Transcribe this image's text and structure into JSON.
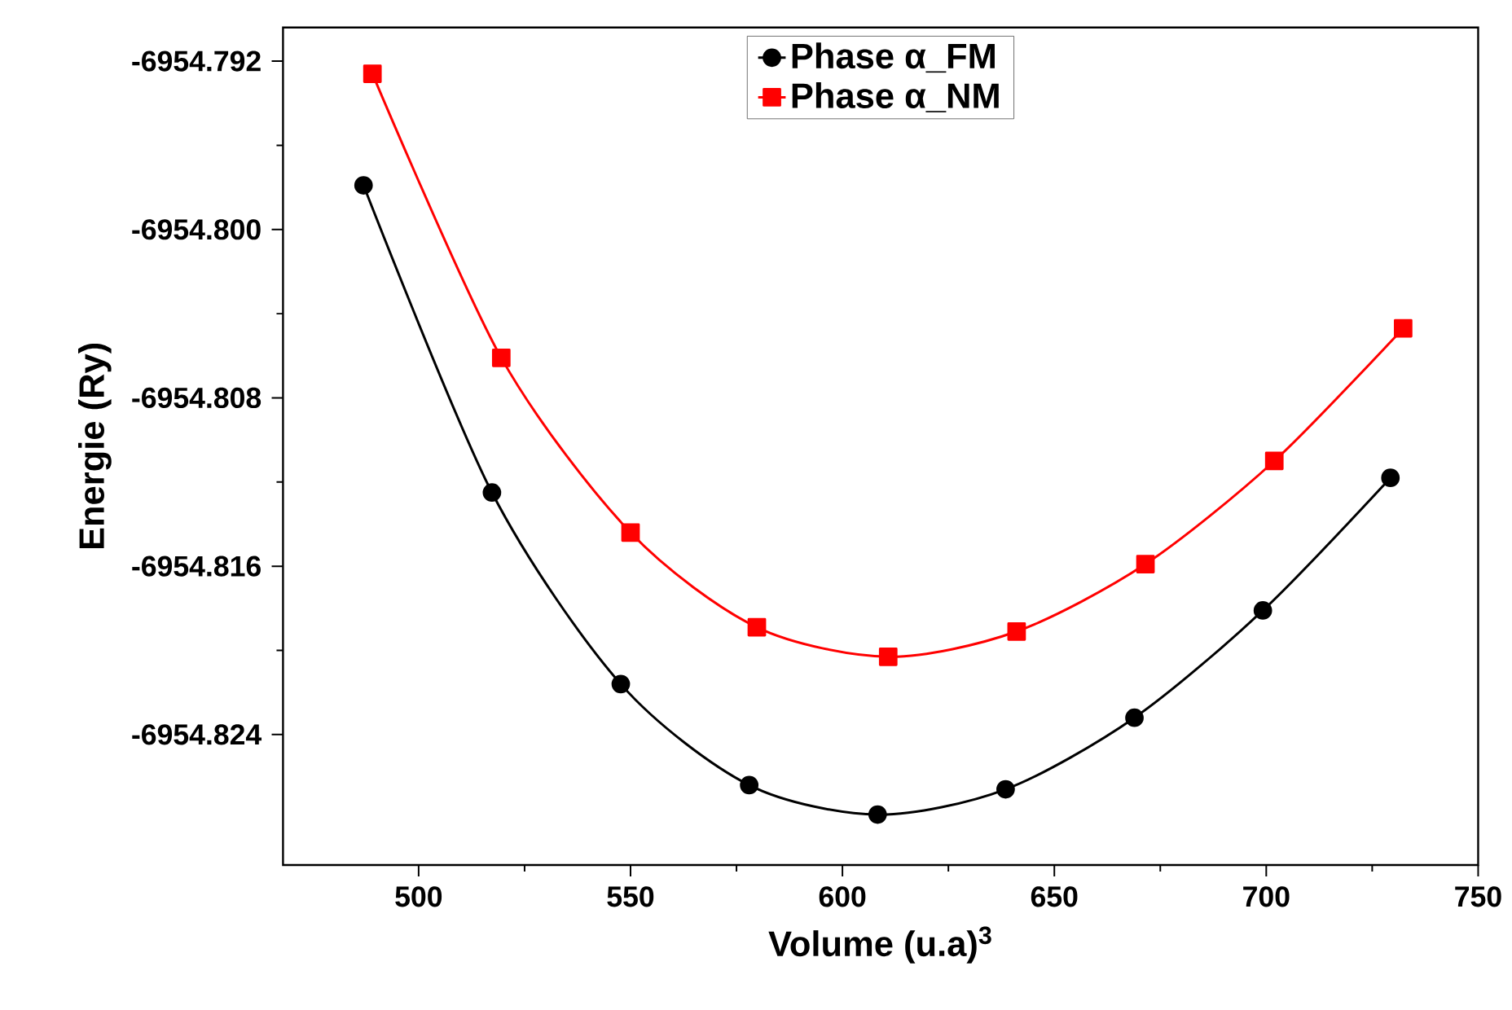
{
  "chart_data": {
    "type": "line",
    "xlabel": "Volume (u.a)$^{3}$",
    "ylabel": "Energie (Ry)",
    "xlim": [
      468,
      750
    ],
    "ylim": [
      -6954.8302,
      -6954.7904
    ],
    "xticks": [
      500,
      550,
      600,
      650,
      700,
      750
    ],
    "yticks": [
      -6954.792,
      {
        "value": -6954.8,
        "label": "-6954.800"
      },
      -6954.808,
      -6954.816,
      -6954.824
    ],
    "grid": false,
    "legend": "top",
    "line_style": "solid",
    "series": [
      {
        "name": "Phase α_FM",
        "color": "#000000",
        "marker": "circle",
        "x": [
          487.0,
          517.3,
          547.7,
          578.0,
          608.3,
          638.5,
          668.9,
          699.2,
          729.3
        ],
        "values": [
          -6954.7979,
          -6954.8125,
          -6954.8216,
          -6954.8264,
          -6954.8278,
          -6954.8266,
          -6954.8232,
          -6954.8181,
          -6954.8118
        ]
      },
      {
        "name": "Phase α_NM",
        "color": "#ff0000",
        "marker": "square",
        "x": [
          489.1,
          519.5,
          550.0,
          579.8,
          610.8,
          641.1,
          671.5,
          701.9,
          732.3
        ],
        "values": [
          -6954.7926,
          -6954.8061,
          -6954.8144,
          -6954.8189,
          -6954.8203,
          -6954.8191,
          -6954.8159,
          -6954.811,
          -6954.8047
        ]
      }
    ]
  }
}
